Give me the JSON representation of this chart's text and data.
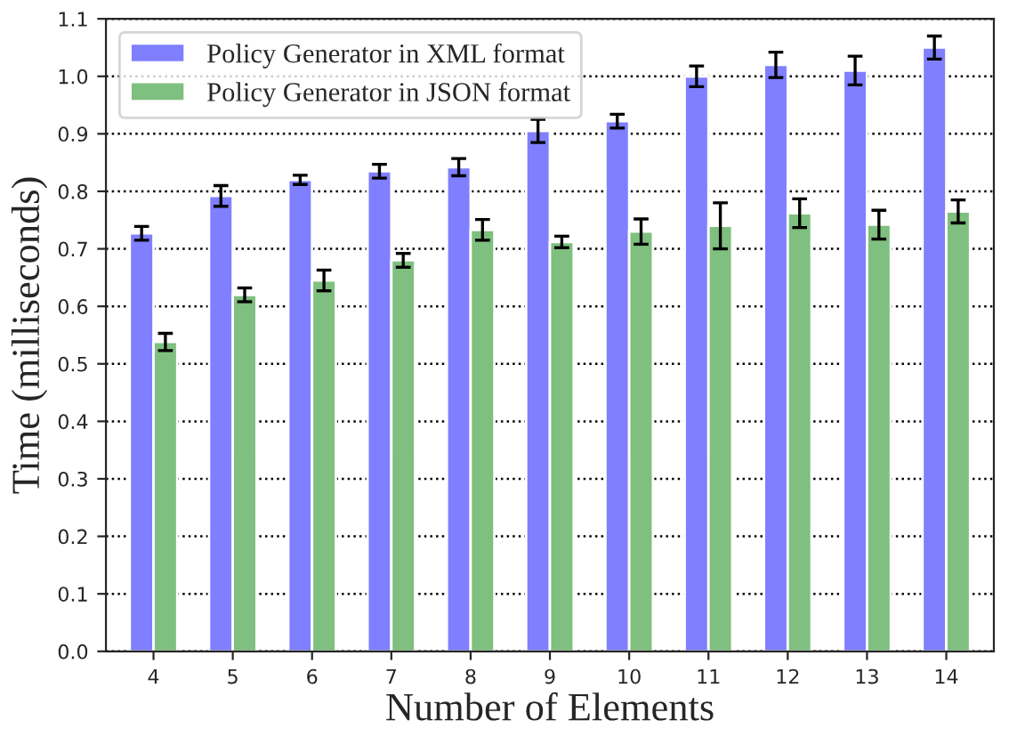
{
  "chart_data": {
    "type": "bar",
    "xlabel": "Number of Elements",
    "ylabel": "Time (milliseconds)",
    "categories": [
      "4",
      "5",
      "6",
      "7",
      "8",
      "9",
      "10",
      "11",
      "12",
      "13",
      "14"
    ],
    "series": [
      {
        "name": "Policy Generator in XML format",
        "color": "#7f7fff",
        "values": [
          0.727,
          0.792,
          0.82,
          0.835,
          0.842,
          0.905,
          0.922,
          1.0,
          1.02,
          1.01,
          1.05
        ],
        "errors": [
          0.012,
          0.018,
          0.008,
          0.012,
          0.015,
          0.02,
          0.012,
          0.018,
          0.022,
          0.025,
          0.02
        ]
      },
      {
        "name": "Policy Generator in JSON format",
        "color": "#7fbf7f",
        "values": [
          0.538,
          0.62,
          0.645,
          0.68,
          0.733,
          0.712,
          0.73,
          0.74,
          0.762,
          0.742,
          0.765
        ],
        "errors": [
          0.015,
          0.012,
          0.018,
          0.012,
          0.018,
          0.01,
          0.022,
          0.04,
          0.025,
          0.025,
          0.02
        ]
      }
    ],
    "ylim": [
      0,
      1.1
    ],
    "yticks": [
      {
        "value": 0,
        "label": "0.0"
      },
      0.1,
      0.2,
      0.3,
      0.4,
      0.5,
      0.6,
      0.7,
      0.8,
      0.9,
      {
        "value": 1,
        "label": "1.0"
      },
      1.1
    ],
    "grid": "y",
    "legend": "top left"
  }
}
